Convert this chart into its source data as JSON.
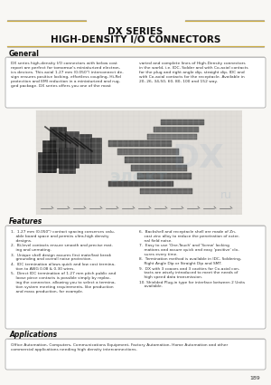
{
  "title_line1": "DX SERIES",
  "title_line2": "HIGH-DENSITY I/O CONNECTORS",
  "page_bg": "#f8f7f4",
  "section_general_title": "General",
  "general_text_col1": "DX series high-density I/O connectors with below cost\nreport are perfect for tomorrow's miniaturized electron-\nics devices. This axial 1.27 mm (0.050\") interconnect de-\nsign ensures positive locking, effortless coupling, Hi-Rel\nprotection and EMI reduction in a miniaturized and rug-\nged package. DX series offers you one of the most",
  "general_text_col2": "varied and complete lines of High-Density connectors\nin the world, i.e. IDC, Solder and with Co-axial contacts\nfor the plug and right angle dip, straight dip, IDC and\nwith Co-axial contacts for the receptacle. Available in\n20, 26, 34,50, 60, 80, 100 and 152 way.",
  "section_features_title": "Features",
  "feat_col1": [
    "1.  1.27 mm (0.050\") contact spacing conserves valu-\n    able board space and permits ultra-high density\n    designs.",
    "2.  Bi-level contacts ensure smooth and precise mat-\n    ing and unmating.",
    "3.  Unique shell design assures first mate/last break\n    grounding and overall noise protection.",
    "4.  IDC termination allows quick and low cost termina-\n    tion to AWG 0.08 & 0.30 wires.",
    "5.  Direct IDC termination of 1.27 mm pitch public and\n    loose piece contacts is possible simply by replac-\n    ing the connector, allowing you to select a termina-\n    tion system meeting requirements, like production\n    and mass production, for example."
  ],
  "feat_col2": [
    "6.  Backshell and receptacle shell are made of Zn-\n    cast zinc alloy to reduce the penetration of exter-\n    nal field noise.",
    "7.  Easy to use 'One-Touch' and 'Screw' locking\n    mations and assure quick and easy 'positive' clo-\n    sures every time.",
    "8.  Termination method is available in IDC, Soldering,\n    Right Angle Dip or Straight Dip and SMT.",
    "9.  DX with 3 coaxes and 3 cavities for Co-axial con-\n    tacts are wisely introduced to meet the needs of\n    high speed data transmission.",
    "10. Shielded Plug-in type for interface between 2 Units\n    available."
  ],
  "section_applications_title": "Applications",
  "applications_text": "Office Automation, Computers, Communications Equipment, Factory Automation, Home Automation and other\ncommercial applications needing high density interconnections.",
  "page_number": "189",
  "gold_color": "#c8a840",
  "gray_color": "#aaaaaa",
  "dark_color": "#111111",
  "text_color": "#333333"
}
